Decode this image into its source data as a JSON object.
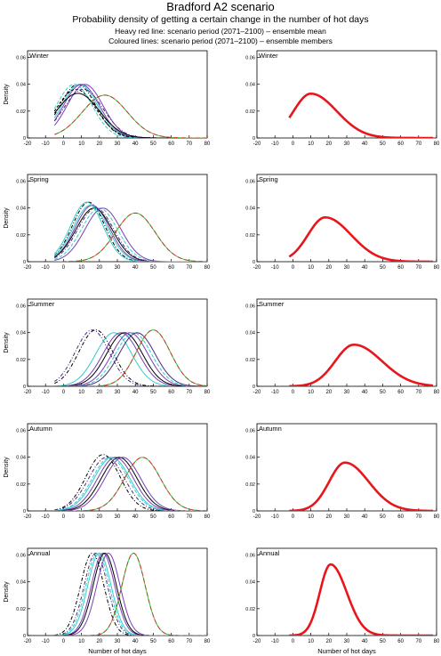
{
  "title": "Bradford A2 scenario",
  "subtitle": "Probability density of getting a certain change in the number of hot days",
  "note_heavy": "Heavy red line: scenario period (2071–2100) – ensemble mean",
  "note_coloured": "Coloured lines: scenario period (2071–2100) – ensemble members",
  "xlabel": "Number of hot days",
  "ylabel": "Density",
  "chart_data": {
    "type": "line",
    "x_ticks": [
      -20,
      -10,
      0,
      10,
      20,
      30,
      40,
      50,
      60,
      70,
      80
    ],
    "y_ticks": [
      0,
      0.02,
      0.04,
      0.06
    ],
    "y_tick_labels": [
      "0",
      "0.02",
      "0.04",
      "0.06"
    ],
    "xlim": [
      -20,
      80
    ],
    "ylim": [
      0,
      0.065
    ],
    "ensemble_colors": [
      "#000000",
      "#7a3fb5",
      "#33cccc",
      "#33cc33",
      "#cc3333",
      "#4a2a7a"
    ],
    "ensemble_mean_color": "#e8161b",
    "panels": [
      {
        "season": "Winter",
        "ensemble_mean": {
          "mean": 10,
          "sd": 12,
          "peak": 0.033
        },
        "members": [
          {
            "mean": 8,
            "sd": 10,
            "color": "#000000",
            "dash": "4 2 1 2"
          },
          {
            "mean": 9,
            "sd": 10,
            "color": "#33cccc",
            "dash": ""
          },
          {
            "mean": 10,
            "sd": 10,
            "color": "#7a3fb5",
            "dash": ""
          },
          {
            "mean": 7,
            "sd": 11,
            "color": "#000000",
            "dash": "3 2"
          },
          {
            "mean": 11,
            "sd": 11,
            "color": "#4a2a7a",
            "dash": "4 2 1 2"
          },
          {
            "mean": 6,
            "sd": 10,
            "color": "#33cccc",
            "dash": "4 2"
          },
          {
            "mean": 12,
            "sd": 10,
            "color": "#7a3fb5",
            "dash": ""
          },
          {
            "mean": 8,
            "sd": 12,
            "color": "#000000",
            "dash": ""
          },
          {
            "mean": 23,
            "sd": 12.5,
            "color": "#33cc33",
            "dash": ""
          },
          {
            "mean": 23,
            "sd": 12.5,
            "color": "#cc3333",
            "dash": "5 3"
          }
        ]
      },
      {
        "season": "Spring",
        "ensemble_mean": {
          "mean": 18,
          "sd": 12,
          "peak": 0.033
        },
        "members": [
          {
            "mean": 14,
            "sd": 9,
            "color": "#000000",
            "dash": "4 2 1 2"
          },
          {
            "mean": 15,
            "sd": 9.5,
            "color": "#33cccc",
            "dash": ""
          },
          {
            "mean": 16,
            "sd": 9.5,
            "color": "#7a3fb5",
            "dash": ""
          },
          {
            "mean": 17,
            "sd": 10,
            "color": "#000000",
            "dash": ""
          },
          {
            "mean": 18,
            "sd": 10,
            "color": "#4a2a7a",
            "dash": "4 2 1 2"
          },
          {
            "mean": 20,
            "sd": 10,
            "color": "#33cccc",
            "dash": "4 2"
          },
          {
            "mean": 22,
            "sd": 10,
            "color": "#7a3fb5",
            "dash": ""
          },
          {
            "mean": 13,
            "sd": 9,
            "color": "#33cccc",
            "dash": ""
          },
          {
            "mean": 40,
            "sd": 11,
            "color": "#33cc33",
            "dash": ""
          },
          {
            "mean": 40,
            "sd": 11,
            "color": "#cc3333",
            "dash": "5 3"
          }
        ]
      },
      {
        "season": "Summer",
        "ensemble_mean": {
          "mean": 34,
          "sd": 13,
          "peak": 0.031
        },
        "members": [
          {
            "mean": 16,
            "sd": 9.5,
            "color": "#4a2a7a",
            "dash": "4 2 1 2"
          },
          {
            "mean": 18,
            "sd": 9.5,
            "color": "#000000",
            "dash": "4 2 1 2"
          },
          {
            "mean": 28,
            "sd": 10,
            "color": "#33cccc",
            "dash": ""
          },
          {
            "mean": 32,
            "sd": 10,
            "color": "#7a3fb5",
            "dash": ""
          },
          {
            "mean": 34,
            "sd": 10,
            "color": "#000000",
            "dash": ""
          },
          {
            "mean": 37,
            "sd": 10,
            "color": "#7a3fb5",
            "dash": ""
          },
          {
            "mean": 39,
            "sd": 10,
            "color": "#33cccc",
            "dash": "4 2"
          },
          {
            "mean": 41,
            "sd": 10,
            "color": "#4a2a7a",
            "dash": ""
          },
          {
            "mean": 50,
            "sd": 9.5,
            "color": "#33cc33",
            "dash": ""
          },
          {
            "mean": 50,
            "sd": 9.5,
            "color": "#cc3333",
            "dash": "5 3"
          }
        ]
      },
      {
        "season": "Autumn",
        "ensemble_mean": {
          "mean": 29,
          "sd": 11,
          "peak": 0.036
        },
        "members": [
          {
            "mean": 22,
            "sd": 9.5,
            "color": "#000000",
            "dash": "4 2 1 2"
          },
          {
            "mean": 24,
            "sd": 10,
            "color": "#4a2a7a",
            "dash": "4 2 1 2"
          },
          {
            "mean": 27,
            "sd": 10,
            "color": "#33cccc",
            "dash": ""
          },
          {
            "mean": 29,
            "sd": 10,
            "color": "#7a3fb5",
            "dash": ""
          },
          {
            "mean": 31,
            "sd": 10,
            "color": "#000000",
            "dash": ""
          },
          {
            "mean": 33,
            "sd": 10,
            "color": "#7a3fb5",
            "dash": ""
          },
          {
            "mean": 26,
            "sd": 10,
            "color": "#33cccc",
            "dash": "4 2"
          },
          {
            "mean": 44,
            "sd": 10,
            "color": "#33cc33",
            "dash": ""
          },
          {
            "mean": 44,
            "sd": 10,
            "color": "#cc3333",
            "dash": "5 3"
          }
        ]
      },
      {
        "season": "Annual",
        "ensemble_mean": {
          "mean": 21,
          "sd": 7.5,
          "peak": 0.053
        },
        "members": [
          {
            "mean": 16,
            "sd": 6.5,
            "color": "#000000",
            "dash": "4 2 1 2"
          },
          {
            "mean": 18,
            "sd": 6.5,
            "color": "#4a2a7a",
            "dash": "4 2 1 2"
          },
          {
            "mean": 20,
            "sd": 6.5,
            "color": "#33cccc",
            "dash": ""
          },
          {
            "mean": 22,
            "sd": 6.5,
            "color": "#7a3fb5",
            "dash": ""
          },
          {
            "mean": 23,
            "sd": 6.5,
            "color": "#000000",
            "dash": ""
          },
          {
            "mean": 25,
            "sd": 6.5,
            "color": "#7a3fb5",
            "dash": ""
          },
          {
            "mean": 19,
            "sd": 6.5,
            "color": "#33cccc",
            "dash": "4 2"
          },
          {
            "mean": 39,
            "sd": 6.5,
            "color": "#33cc33",
            "dash": ""
          },
          {
            "mean": 39,
            "sd": 6.5,
            "color": "#cc3333",
            "dash": "5 3"
          }
        ]
      }
    ]
  }
}
